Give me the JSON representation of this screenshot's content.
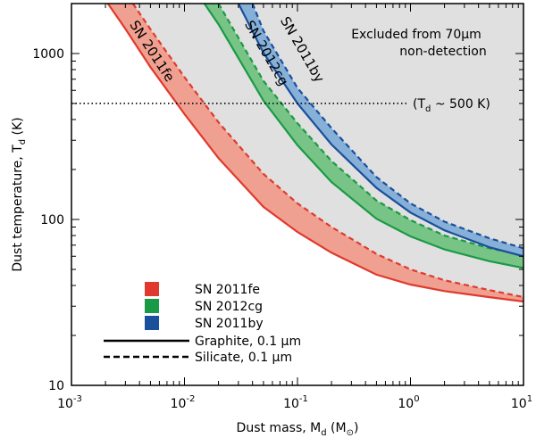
{
  "chart_data": {
    "type": "area",
    "x_scale": "log",
    "y_scale": "log",
    "xlim": [
      0.001,
      10
    ],
    "ylim": [
      10,
      2000
    ],
    "x_ticks": [
      {
        "value": 0.001,
        "base": "10",
        "exp": "-3"
      },
      {
        "value": 0.01,
        "base": "10",
        "exp": "-2"
      },
      {
        "value": 0.1,
        "base": "10",
        "exp": "-1"
      },
      {
        "value": 1,
        "base": "10",
        "exp": "0"
      },
      {
        "value": 10,
        "base": "10",
        "exp": "1"
      }
    ],
    "y_ticks": [
      {
        "value": 10,
        "label": "10"
      },
      {
        "value": 100,
        "label": "100"
      },
      {
        "value": 1000,
        "label": "1000"
      }
    ],
    "xlabel": {
      "main": "Dust mass, M",
      "sub": "d",
      "unit": " (M",
      "unit_sub": "⊙",
      "close": ")"
    },
    "ylabel": {
      "main": "Dust temperature, T",
      "sub": "d",
      "unit": " (K)"
    },
    "excluded_region": {
      "color": "#e0e0e0",
      "label_lines": [
        "Excluded from 70μm",
        "non-detection"
      ]
    },
    "reference_line": {
      "y": 500,
      "style": "dotted",
      "label_pre": "(T",
      "label_sub": "d",
      "label_post": " ~ 500 K)"
    },
    "series": [
      {
        "name": "SN 2011fe",
        "color": "#e03a2e",
        "fill": "#f0a090",
        "graphite": {
          "x": [
            0.0021,
            0.003,
            0.005,
            0.01,
            0.02,
            0.05,
            0.1,
            0.2,
            0.5,
            1,
            2,
            5,
            10
          ],
          "y": [
            2000,
            1408,
            828,
            432,
            234,
            119,
            84,
            63,
            46.5,
            40.5,
            37,
            34,
            32
          ]
        },
        "silicate": {
          "x": [
            0.0035,
            0.005,
            0.01,
            0.02,
            0.05,
            0.1,
            0.2,
            0.5,
            1,
            2,
            5,
            10
          ],
          "y": [
            2000,
            1400,
            720,
            385,
            188,
            125,
            90,
            62,
            50,
            43,
            37.5,
            34
          ]
        },
        "label_lines": [
          "SN 2011fe"
        ]
      },
      {
        "name": "SN 2012cg",
        "color": "#1a9a46",
        "fill": "#78c487",
        "graphite": {
          "x": [
            0.015,
            0.02,
            0.05,
            0.1,
            0.2,
            0.5,
            1,
            2,
            5,
            10
          ],
          "y": [
            2000,
            1500,
            520,
            280,
            168,
            101,
            79,
            66,
            56,
            51
          ]
        },
        "silicate": {
          "x": [
            0.02,
            0.05,
            0.1,
            0.2,
            0.5,
            1,
            2,
            5,
            10
          ],
          "y": [
            2000,
            684,
            380,
            225,
            130,
            99,
            80,
            67,
            61
          ]
        },
        "label_lines": [
          "SN 2012cg"
        ]
      },
      {
        "name": "SN 2011by",
        "color": "#1a4f9c",
        "fill": "#86b0d8",
        "graphite": {
          "x": [
            0.03,
            0.05,
            0.1,
            0.2,
            0.5,
            1,
            2,
            5,
            10
          ],
          "y": [
            2000,
            1010,
            500,
            283,
            155,
            110,
            86,
            68,
            60
          ]
        },
        "silicate": {
          "x": [
            0.04,
            0.05,
            0.1,
            0.2,
            0.5,
            1,
            2,
            5,
            10
          ],
          "y": [
            2000,
            1370,
            620,
            355,
            180,
            125,
            97,
            77,
            67
          ]
        },
        "label_lines": [
          "SN 2011by"
        ]
      }
    ]
  },
  "legend": {
    "items": [
      {
        "label": "SN 2011fe",
        "color": "#e03a2e"
      },
      {
        "label": "SN 2012cg",
        "color": "#1a9a46"
      },
      {
        "label": "SN 2011by",
        "color": "#1a4f9c"
      }
    ],
    "graphite_label": "Graphite, 0.1 μm",
    "silicate_label": "Silicate, 0.1 μm"
  }
}
